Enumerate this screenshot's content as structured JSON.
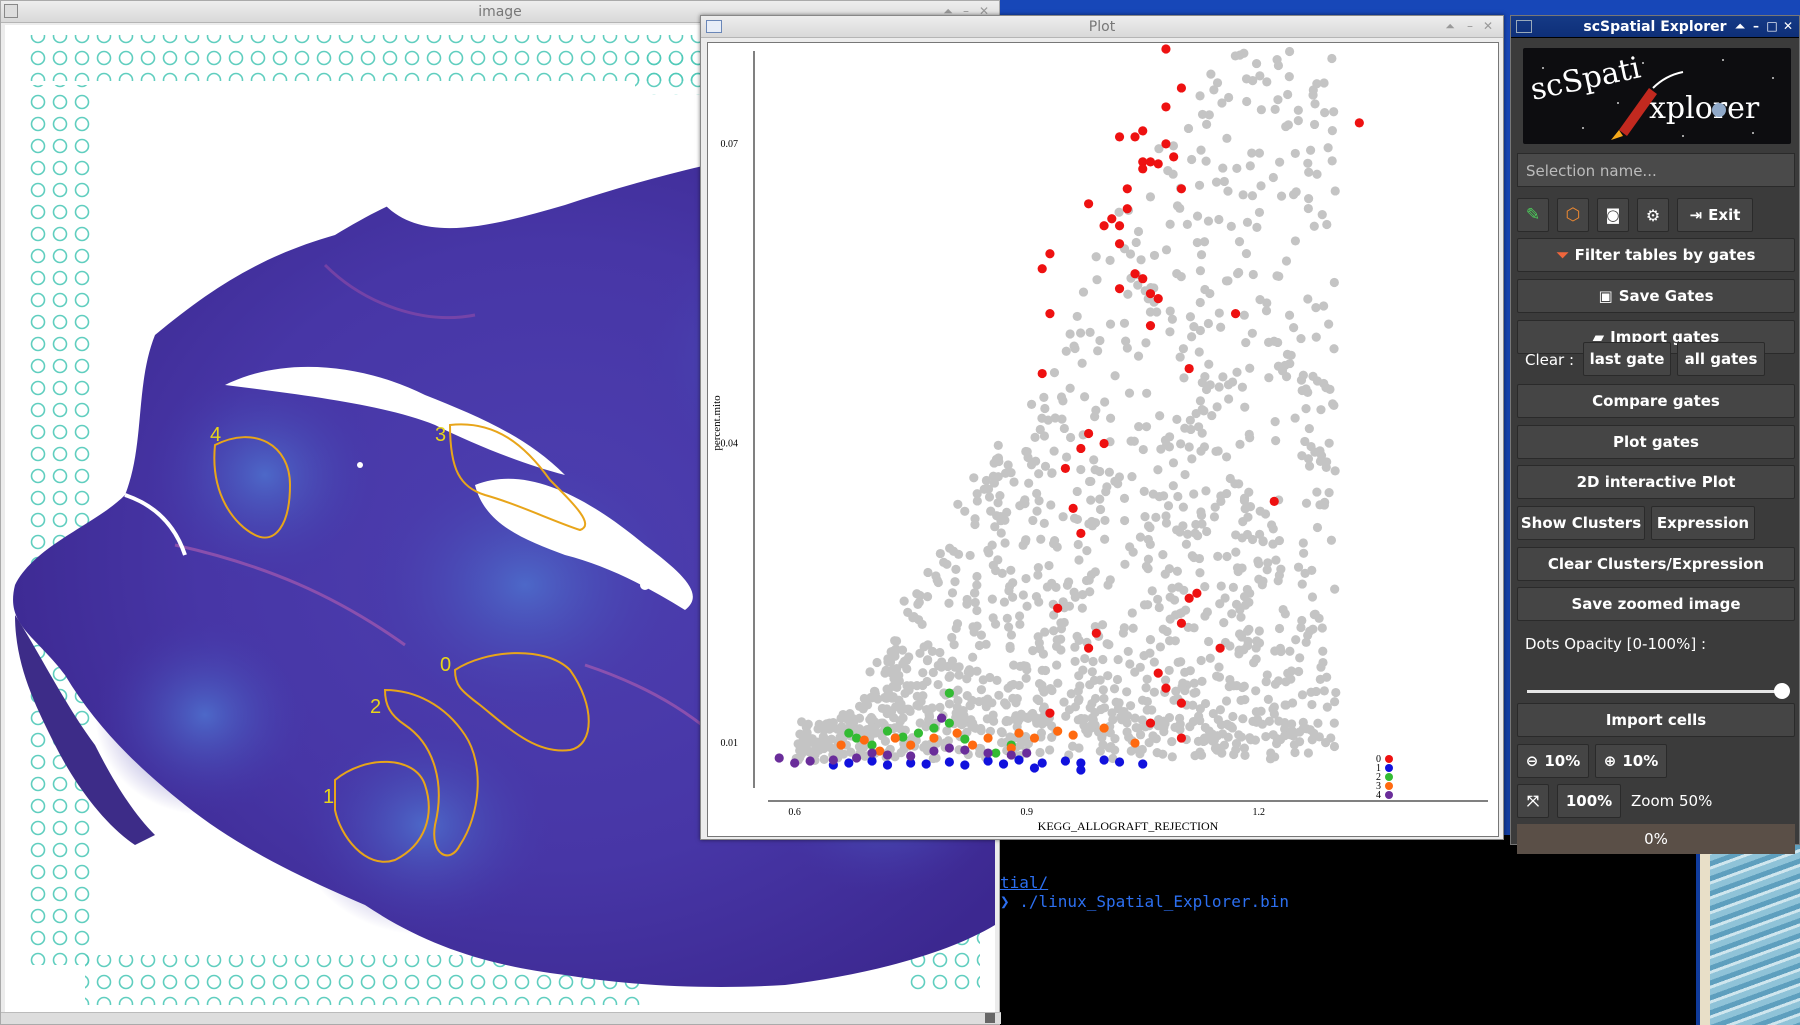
{
  "image_window": {
    "title": "image",
    "gate_labels": [
      "4",
      "3",
      "0",
      "2",
      "1"
    ]
  },
  "plot_window": {
    "title": "Plot"
  },
  "chart_data": {
    "type": "scatter",
    "xlabel": "KEGG_ALLOGRAFT_REJECTION",
    "ylabel": "percent.mito",
    "x_ticks": [
      "0.6",
      "0.9",
      "1.2"
    ],
    "y_ticks": [
      "0.01",
      "0.04",
      "0.07"
    ],
    "xlim": [
      0.55,
      1.38
    ],
    "ylim": [
      0.006,
      0.0795
    ],
    "legend": [
      "0",
      "1",
      "2",
      "3",
      "4"
    ],
    "legend_placement": "bottom-right",
    "colors": {
      "background": "#c4c4c4",
      "0": "#ee1111",
      "1": "#1111dd",
      "2": "#33bb33",
      "3": "#ff6a10",
      "4": "#6a2d9a"
    },
    "series": [
      {
        "name": "0",
        "points": [
          [
            1.08,
            0.0795
          ],
          [
            1.1,
            0.0756
          ],
          [
            1.08,
            0.0737
          ],
          [
            1.33,
            0.0721
          ],
          [
            1.05,
            0.0713
          ],
          [
            1.02,
            0.0707
          ],
          [
            1.04,
            0.0707
          ],
          [
            1.08,
            0.07
          ],
          [
            1.09,
            0.0687
          ],
          [
            1.05,
            0.0682
          ],
          [
            1.06,
            0.0682
          ],
          [
            1.07,
            0.068
          ],
          [
            1.05,
            0.0675
          ],
          [
            1.03,
            0.0655
          ],
          [
            1.1,
            0.0655
          ],
          [
            0.98,
            0.064
          ],
          [
            1.03,
            0.0635
          ],
          [
            1.01,
            0.0625
          ],
          [
            1.02,
            0.0618
          ],
          [
            1.0,
            0.0618
          ],
          [
            1.02,
            0.06
          ],
          [
            0.93,
            0.059
          ],
          [
            0.92,
            0.0575
          ],
          [
            1.04,
            0.057
          ],
          [
            1.05,
            0.0565
          ],
          [
            1.02,
            0.0555
          ],
          [
            1.06,
            0.055
          ],
          [
            1.07,
            0.0545
          ],
          [
            1.17,
            0.053
          ],
          [
            0.93,
            0.053
          ],
          [
            1.06,
            0.0518
          ],
          [
            0.92,
            0.047
          ],
          [
            1.11,
            0.0475
          ],
          [
            0.98,
            0.041
          ],
          [
            1.0,
            0.04
          ],
          [
            0.97,
            0.0395
          ],
          [
            0.95,
            0.0375
          ],
          [
            1.22,
            0.0342
          ],
          [
            0.96,
            0.0335
          ],
          [
            0.97,
            0.031
          ],
          [
            1.11,
            0.0245
          ],
          [
            1.12,
            0.025
          ],
          [
            0.94,
            0.0235
          ],
          [
            1.1,
            0.022
          ],
          [
            0.99,
            0.021
          ],
          [
            1.15,
            0.0195
          ],
          [
            0.98,
            0.0195
          ],
          [
            1.07,
            0.017
          ],
          [
            1.08,
            0.0155
          ],
          [
            1.1,
            0.014
          ],
          [
            0.93,
            0.013
          ],
          [
            1.06,
            0.012
          ],
          [
            1.1,
            0.0105
          ]
        ]
      },
      {
        "name": "1",
        "points": [
          [
            0.65,
            0.0078
          ],
          [
            0.67,
            0.008
          ],
          [
            0.7,
            0.0082
          ],
          [
            0.72,
            0.0078
          ],
          [
            0.75,
            0.008
          ],
          [
            0.77,
            0.0079
          ],
          [
            0.8,
            0.0081
          ],
          [
            0.82,
            0.0078
          ],
          [
            0.85,
            0.0082
          ],
          [
            0.87,
            0.0079
          ],
          [
            0.89,
            0.0083
          ],
          [
            0.92,
            0.008
          ],
          [
            0.95,
            0.0082
          ],
          [
            0.97,
            0.008
          ],
          [
            1.0,
            0.0083
          ],
          [
            1.02,
            0.0081
          ],
          [
            1.05,
            0.0079
          ],
          [
            0.91,
            0.0075
          ],
          [
            0.97,
            0.0073
          ]
        ]
      },
      {
        "name": "2",
        "points": [
          [
            0.67,
            0.011
          ],
          [
            0.68,
            0.0105
          ],
          [
            0.7,
            0.0098
          ],
          [
            0.72,
            0.0112
          ],
          [
            0.74,
            0.0106
          ],
          [
            0.76,
            0.011
          ],
          [
            0.78,
            0.0115
          ],
          [
            0.8,
            0.012
          ],
          [
            0.82,
            0.0104
          ],
          [
            0.86,
            0.009
          ],
          [
            0.8,
            0.015
          ],
          [
            0.88,
            0.0098
          ]
        ]
      },
      {
        "name": "3",
        "points": [
          [
            0.66,
            0.0098
          ],
          [
            0.69,
            0.0103
          ],
          [
            0.71,
            0.0092
          ],
          [
            0.73,
            0.0105
          ],
          [
            0.75,
            0.0098
          ],
          [
            0.78,
            0.0105
          ],
          [
            0.81,
            0.011
          ],
          [
            0.83,
            0.0098
          ],
          [
            0.85,
            0.0105
          ],
          [
            0.88,
            0.0095
          ],
          [
            0.89,
            0.011
          ],
          [
            0.91,
            0.0105
          ],
          [
            0.94,
            0.0112
          ],
          [
            0.96,
            0.0108
          ],
          [
            1.0,
            0.0115
          ],
          [
            1.04,
            0.01
          ]
        ]
      },
      {
        "name": "4",
        "points": [
          [
            0.58,
            0.0085
          ],
          [
            0.6,
            0.008
          ],
          [
            0.62,
            0.0082
          ],
          [
            0.65,
            0.0083
          ],
          [
            0.68,
            0.0085
          ],
          [
            0.7,
            0.009
          ],
          [
            0.72,
            0.0088
          ],
          [
            0.75,
            0.0087
          ],
          [
            0.78,
            0.0092
          ],
          [
            0.8,
            0.0095
          ],
          [
            0.82,
            0.0093
          ],
          [
            0.85,
            0.009
          ],
          [
            0.88,
            0.0088
          ],
          [
            0.9,
            0.009
          ],
          [
            0.79,
            0.0125
          ]
        ]
      }
    ]
  },
  "explorer": {
    "title": "scSpatial Explorer",
    "logo_text_1": "scSpati",
    "logo_text_2": "xplorer",
    "selection_placeholder": "Selection name...",
    "exit_label": "Exit",
    "filter_label": "Filter tables by gates",
    "save_gates_label": "Save Gates",
    "import_gates_label": "Import gates",
    "clear_label": "Clear :",
    "last_gate_label": "last gate",
    "all_gates_label": "all gates",
    "compare_gates_label": "Compare gates",
    "plot_gates_label": "Plot gates",
    "interactive_plot_label": "2D interactive Plot",
    "show_clusters_label": "Show Clusters",
    "expression_label": "Expression",
    "clear_clusters_label": "Clear Clusters/Expression",
    "save_zoom_label": "Save zoomed image",
    "opacity_label": "Dots Opacity [0-100%] :",
    "opacity_value": 1.0,
    "import_cells_label": "Import cells",
    "zoom_out_label": "10%",
    "zoom_in_label": "10%",
    "zoom_reset_label": "100%",
    "zoom_status": "Zoom 50%",
    "progress_text": "0%",
    "progress_value": 0
  },
  "terminal": {
    "line1": "tial/",
    "line2": "❯ ./linux_Spatial_Explorer.bin"
  }
}
